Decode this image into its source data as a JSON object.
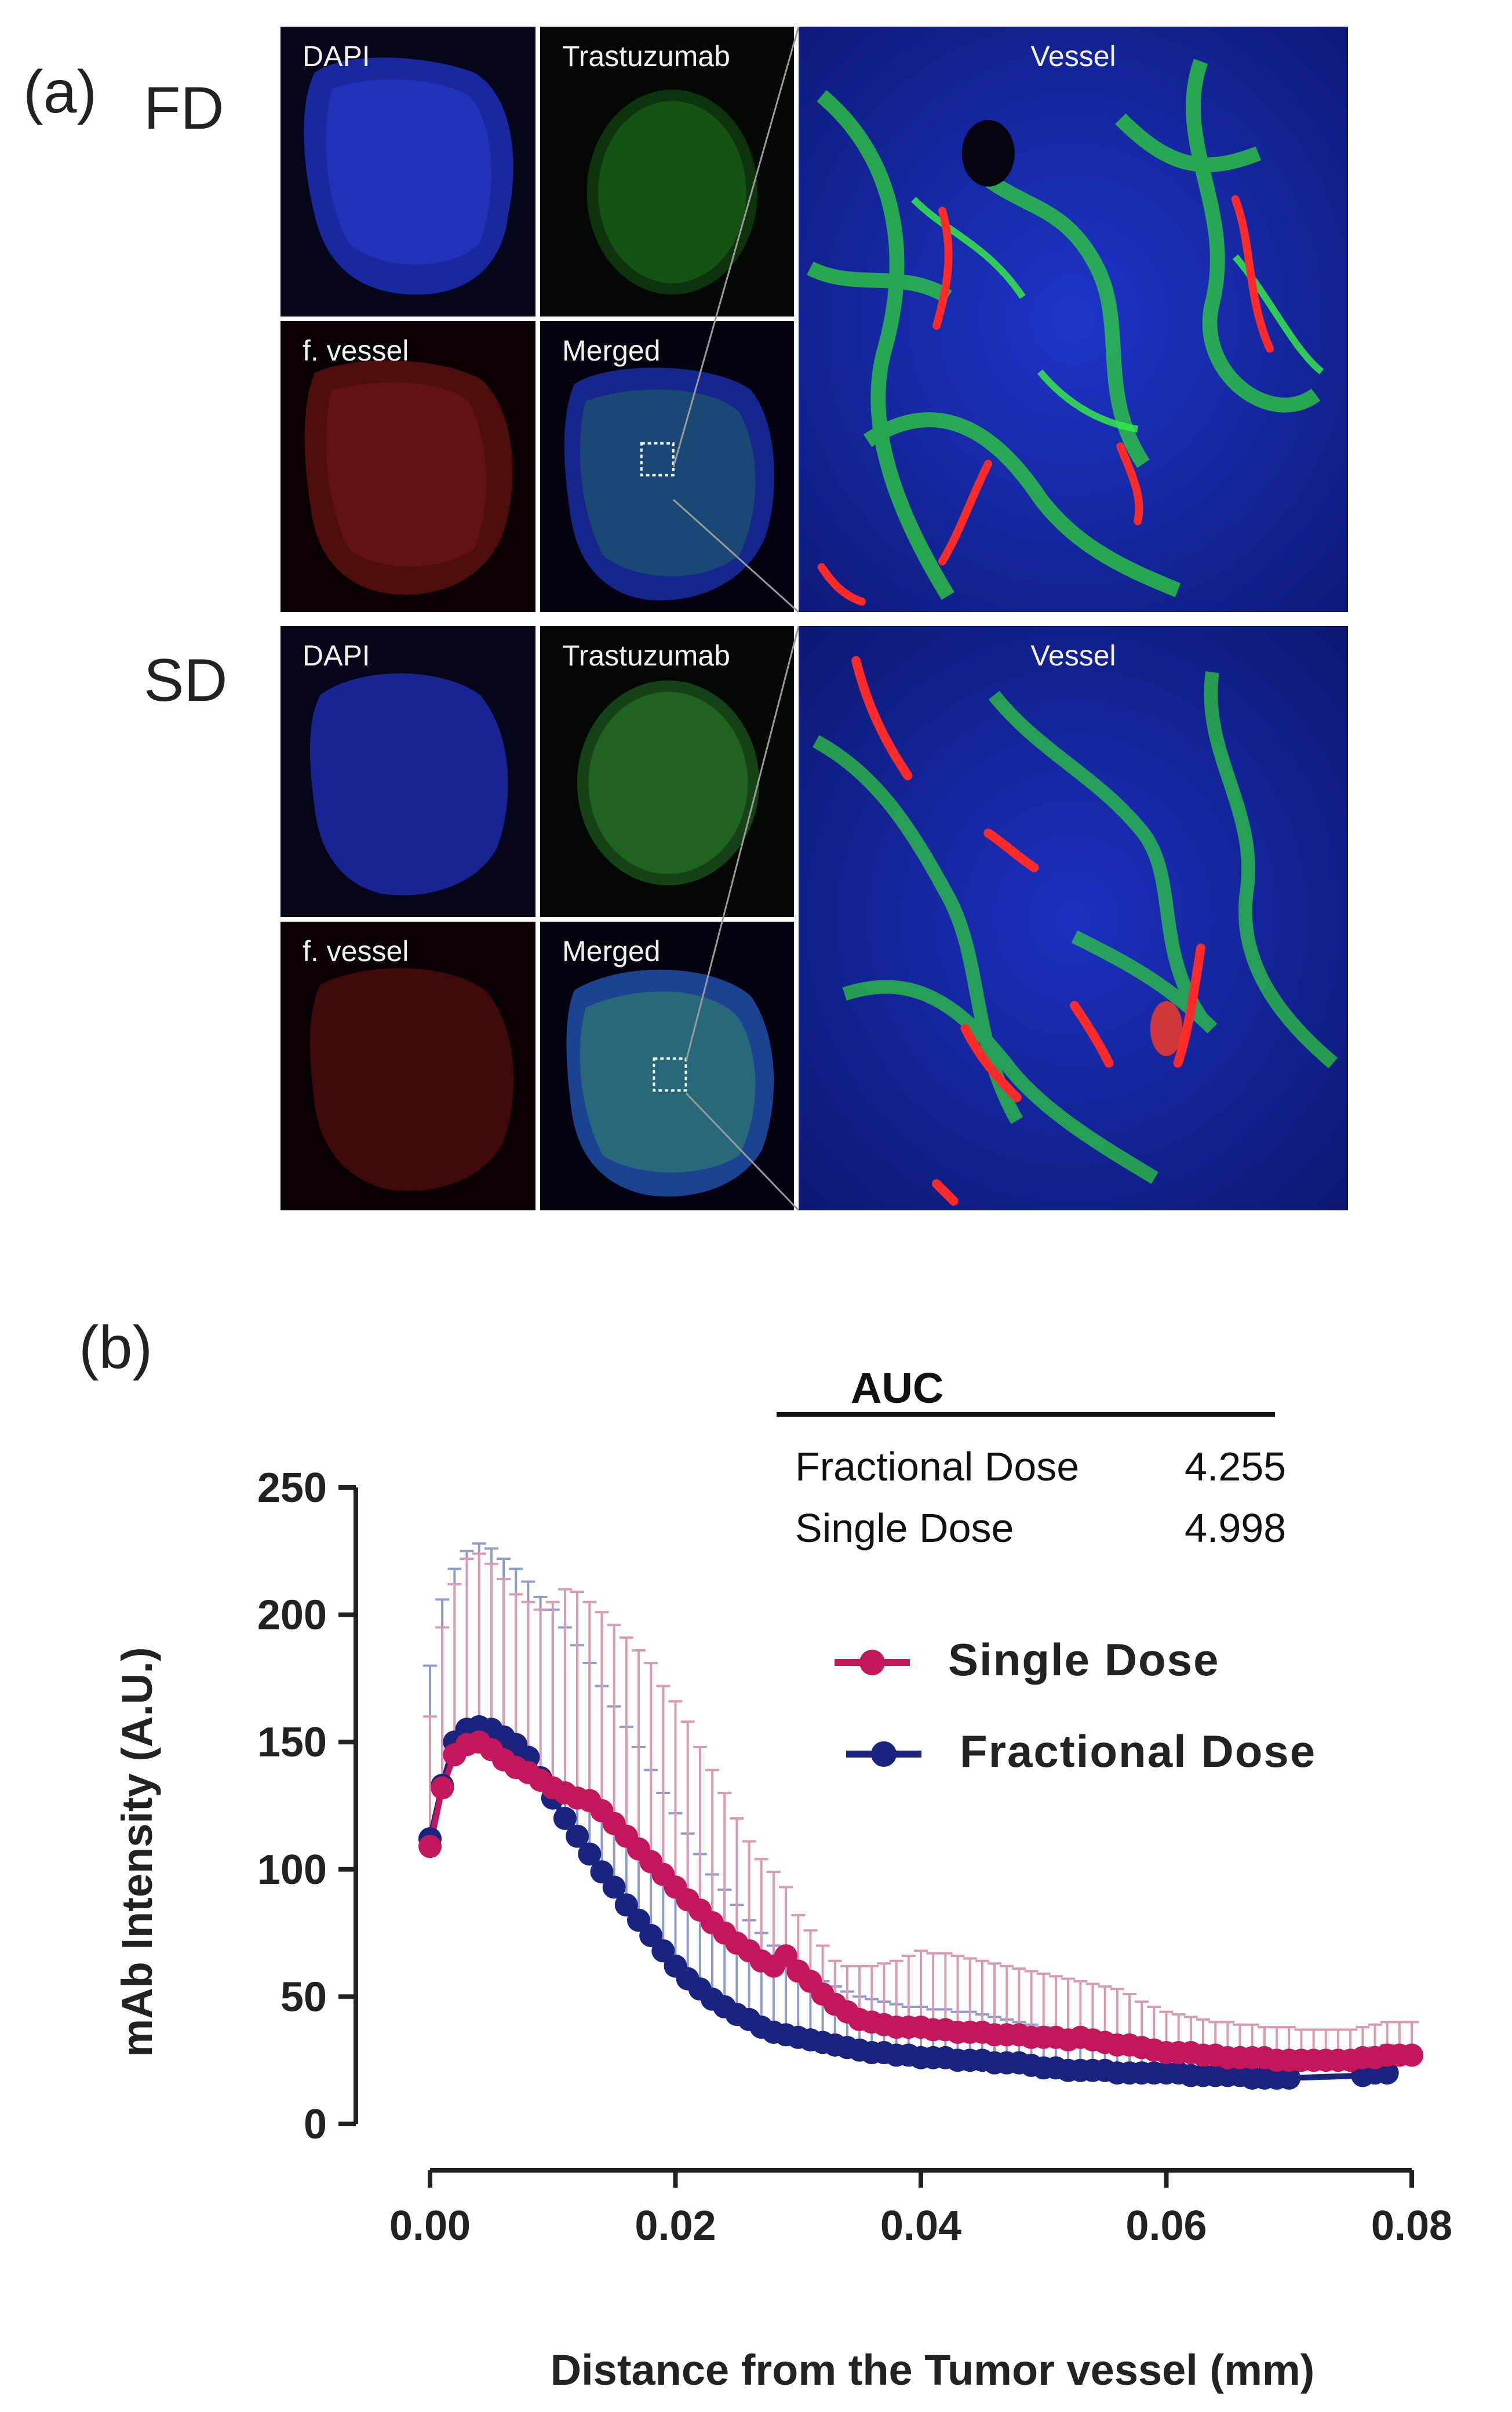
{
  "panel_a": {
    "letter": "(a)",
    "rows": [
      {
        "label": "FD",
        "tiles": {
          "dapi": "DAPI",
          "trastuzumab": "Trastuzumab",
          "vessel": "f. vessel",
          "merged": "Merged",
          "zoom": "Vessel"
        }
      },
      {
        "label": "SD",
        "tiles": {
          "dapi": "DAPI",
          "trastuzumab": "Trastuzumab",
          "vessel": "f. vessel",
          "merged": "Merged",
          "zoom": "Vessel"
        }
      }
    ],
    "colors": {
      "dapi": "#1a2fbf",
      "trastuzumab": "#2ecf2e",
      "vessel": "#d8262b"
    }
  },
  "panel_b": {
    "letter": "(b)",
    "auc_table": {
      "header": "AUC",
      "rows": [
        {
          "name": "Fractional Dose",
          "value": "4.255"
        },
        {
          "name": "Single Dose",
          "value": "4.998"
        }
      ]
    },
    "legend": [
      {
        "label": "Single Dose",
        "color": "#c2185b"
      },
      {
        "label": "Fractional Dose",
        "color": "#1a237e"
      }
    ]
  },
  "chart_data": {
    "type": "line",
    "xlabel": "Distance from the Tumor vessel (mm)",
    "ylabel": "mAb Intensity (A.U.)",
    "xlim": [
      0,
      0.08
    ],
    "ylim": [
      0,
      250
    ],
    "xticks": [
      "0.00",
      "0.02",
      "0.04",
      "0.06",
      "0.08"
    ],
    "yticks": [
      "0",
      "50",
      "100",
      "150",
      "200",
      "250"
    ],
    "series": [
      {
        "name": "Single Dose",
        "color": "#c2185b",
        "error_color": "#d89ab4",
        "points": [
          [
            0.0,
            109,
            160
          ],
          [
            0.001,
            132,
            195
          ],
          [
            0.002,
            145,
            212
          ],
          [
            0.003,
            149,
            222
          ],
          [
            0.004,
            150,
            224
          ],
          [
            0.005,
            147,
            220
          ],
          [
            0.006,
            143,
            214
          ],
          [
            0.007,
            140,
            208
          ],
          [
            0.008,
            138,
            205
          ],
          [
            0.009,
            135,
            202
          ],
          [
            0.01,
            132,
            205
          ],
          [
            0.011,
            130,
            210
          ],
          [
            0.012,
            128,
            209
          ],
          [
            0.013,
            127,
            205
          ],
          [
            0.014,
            123,
            201
          ],
          [
            0.015,
            118,
            196
          ],
          [
            0.016,
            113,
            191
          ],
          [
            0.017,
            108,
            186
          ],
          [
            0.018,
            103,
            181
          ],
          [
            0.019,
            98,
            172
          ],
          [
            0.02,
            93,
            166
          ],
          [
            0.021,
            88,
            158
          ],
          [
            0.022,
            84,
            148
          ],
          [
            0.023,
            79,
            139
          ],
          [
            0.024,
            75,
            130
          ],
          [
            0.025,
            71,
            120
          ],
          [
            0.026,
            68,
            111
          ],
          [
            0.027,
            64,
            104
          ],
          [
            0.028,
            62,
            99
          ],
          [
            0.029,
            66,
            93
          ],
          [
            0.03,
            60,
            82
          ],
          [
            0.031,
            56,
            76
          ],
          [
            0.032,
            51,
            70
          ],
          [
            0.033,
            47,
            64
          ],
          [
            0.034,
            44,
            62
          ],
          [
            0.035,
            41,
            62
          ],
          [
            0.036,
            40,
            62
          ],
          [
            0.037,
            39,
            63
          ],
          [
            0.038,
            38,
            64
          ],
          [
            0.039,
            38,
            66
          ],
          [
            0.04,
            38,
            68
          ],
          [
            0.041,
            37,
            67
          ],
          [
            0.042,
            37,
            67
          ],
          [
            0.043,
            36,
            66
          ],
          [
            0.044,
            36,
            65
          ],
          [
            0.045,
            36,
            64
          ],
          [
            0.046,
            35,
            63
          ],
          [
            0.047,
            35,
            62
          ],
          [
            0.048,
            35,
            61
          ],
          [
            0.049,
            34,
            60
          ],
          [
            0.05,
            34,
            59
          ],
          [
            0.051,
            34,
            58
          ],
          [
            0.052,
            33,
            57
          ],
          [
            0.053,
            34,
            56
          ],
          [
            0.054,
            33,
            55
          ],
          [
            0.055,
            32,
            54
          ],
          [
            0.056,
            31,
            53
          ],
          [
            0.057,
            31,
            51
          ],
          [
            0.058,
            30,
            48
          ],
          [
            0.059,
            29,
            46
          ],
          [
            0.06,
            28,
            44
          ],
          [
            0.061,
            28,
            43
          ],
          [
            0.062,
            28,
            42
          ],
          [
            0.063,
            27,
            41
          ],
          [
            0.064,
            27,
            40
          ],
          [
            0.065,
            26,
            40
          ],
          [
            0.066,
            26,
            39
          ],
          [
            0.067,
            26,
            39
          ],
          [
            0.068,
            26,
            38
          ],
          [
            0.069,
            25,
            38
          ],
          [
            0.07,
            25,
            38
          ],
          [
            0.071,
            25,
            37
          ],
          [
            0.072,
            25,
            37
          ],
          [
            0.073,
            25,
            37
          ],
          [
            0.074,
            25,
            37
          ],
          [
            0.075,
            25,
            37
          ],
          [
            0.076,
            26,
            38
          ],
          [
            0.077,
            26,
            39
          ],
          [
            0.078,
            27,
            40
          ],
          [
            0.079,
            27,
            40
          ],
          [
            0.08,
            27,
            40
          ]
        ]
      },
      {
        "name": "Fractional Dose",
        "color": "#1a237e",
        "error_color": "#8f9bc9",
        "points": [
          [
            0.0,
            112,
            180
          ],
          [
            0.001,
            133,
            206
          ],
          [
            0.002,
            150,
            218
          ],
          [
            0.003,
            155,
            225
          ],
          [
            0.004,
            156,
            228
          ],
          [
            0.005,
            155,
            226
          ],
          [
            0.006,
            152,
            222
          ],
          [
            0.007,
            149,
            218
          ],
          [
            0.008,
            144,
            213
          ],
          [
            0.009,
            136,
            207
          ],
          [
            0.01,
            128,
            202
          ],
          [
            0.011,
            120,
            195
          ],
          [
            0.012,
            113,
            188
          ],
          [
            0.013,
            106,
            181
          ],
          [
            0.014,
            99,
            172
          ],
          [
            0.015,
            93,
            164
          ],
          [
            0.016,
            86,
            156
          ],
          [
            0.017,
            80,
            148
          ],
          [
            0.018,
            74,
            139
          ],
          [
            0.019,
            68,
            130
          ],
          [
            0.02,
            62,
            122
          ],
          [
            0.021,
            57,
            114
          ],
          [
            0.022,
            53,
            106
          ],
          [
            0.023,
            49,
            98
          ],
          [
            0.024,
            46,
            92
          ],
          [
            0.025,
            43,
            86
          ],
          [
            0.026,
            41,
            80
          ],
          [
            0.027,
            38,
            75
          ],
          [
            0.028,
            36,
            70
          ],
          [
            0.029,
            35,
            66
          ],
          [
            0.03,
            34,
            62
          ],
          [
            0.031,
            33,
            59
          ],
          [
            0.032,
            32,
            56
          ],
          [
            0.033,
            31,
            54
          ],
          [
            0.034,
            30,
            52
          ],
          [
            0.035,
            29,
            50
          ],
          [
            0.036,
            28,
            49
          ],
          [
            0.037,
            28,
            48
          ],
          [
            0.038,
            27,
            47
          ],
          [
            0.039,
            27,
            46
          ],
          [
            0.04,
            26,
            46
          ],
          [
            0.041,
            26,
            45
          ],
          [
            0.042,
            26,
            45
          ],
          [
            0.043,
            25,
            44
          ],
          [
            0.044,
            25,
            44
          ],
          [
            0.045,
            25,
            43
          ],
          [
            0.046,
            24,
            42
          ],
          [
            0.047,
            24,
            41
          ],
          [
            0.048,
            24,
            40
          ],
          [
            0.049,
            23,
            39
          ],
          [
            0.05,
            22,
            38
          ],
          [
            0.051,
            22,
            37
          ],
          [
            0.052,
            21,
            36
          ],
          [
            0.053,
            21,
            35
          ],
          [
            0.054,
            21,
            34
          ],
          [
            0.055,
            21,
            33
          ],
          [
            0.056,
            20,
            33
          ],
          [
            0.057,
            20,
            32
          ],
          [
            0.058,
            20,
            32
          ],
          [
            0.059,
            20,
            31
          ],
          [
            0.06,
            20,
            31
          ],
          [
            0.061,
            20,
            30
          ],
          [
            0.062,
            19,
            30
          ],
          [
            0.063,
            19,
            29
          ],
          [
            0.064,
            19,
            29
          ],
          [
            0.065,
            19,
            28
          ],
          [
            0.066,
            19,
            28
          ],
          [
            0.067,
            18,
            27
          ],
          [
            0.068,
            18,
            27
          ],
          [
            0.069,
            18,
            27
          ],
          [
            0.07,
            18,
            27
          ],
          [
            0.076,
            19,
            28
          ],
          [
            0.077,
            20,
            30
          ],
          [
            0.078,
            20,
            31
          ]
        ]
      }
    ],
    "grid": false,
    "legend_position": "center-right"
  }
}
